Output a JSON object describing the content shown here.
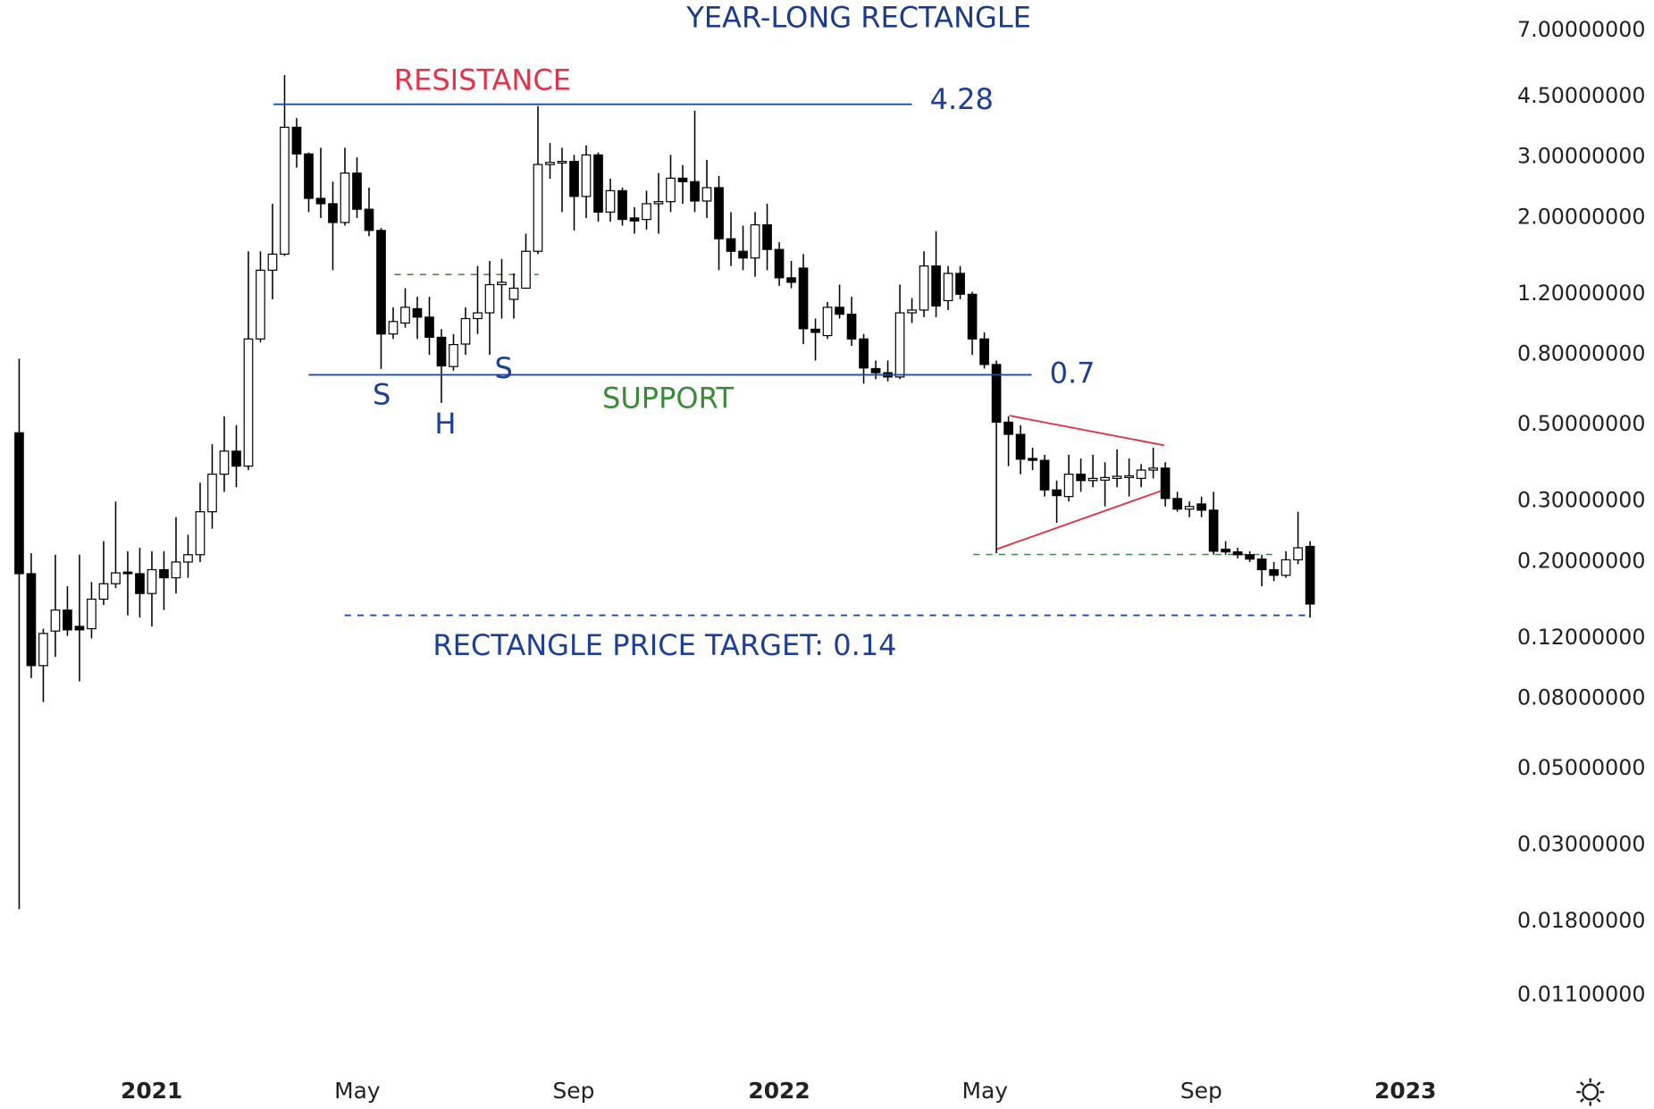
{
  "chart_data": {
    "type": "candlestick",
    "title": "YEAR-LONG RECTANGLE",
    "log_scale": true,
    "up_color": "#ffffff",
    "down_color": "#000000",
    "open": [
      0.475,
      0.185,
      0.1,
      0.126,
      0.145,
      0.13,
      0.128,
      0.156,
      0.173,
      0.187,
      0.185,
      0.162,
      0.19,
      0.18,
      0.2,
      0.21,
      0.28,
      0.36,
      0.42,
      0.38,
      0.89,
      1.41,
      1.57,
      3.67,
      3.07,
      2.28,
      2.2,
      1.94,
      2.7,
      2.12,
      1.84,
      0.92,
      0.99,
      1.09,
      1.03,
      0.9,
      0.74,
      0.86,
      1.02,
      1.06,
      1.28,
      1.16,
      1.25,
      1.6,
      2.86,
      2.9,
      2.92,
      2.31,
      3.05,
      2.08,
      2.4,
      2.0,
      1.98,
      2.2,
      2.23,
      2.61,
      2.55,
      2.24,
      2.45,
      1.74,
      1.6,
      1.53,
      1.91,
      1.62,
      1.34,
      1.43,
      0.95,
      0.91,
      1.1,
      1.05,
      0.89,
      0.73,
      0.71,
      0.69,
      1.06,
      1.08,
      1.45,
      1.15,
      1.38,
      1.2,
      0.89,
      0.75,
      0.51,
      0.47,
      0.4,
      0.395,
      0.324,
      0.31,
      0.36,
      0.345,
      0.346,
      0.35,
      0.352,
      0.35,
      0.37,
      0.375,
      0.306,
      0.285,
      0.295,
      0.283,
      0.218,
      0.214,
      0.21,
      0.204,
      0.19,
      0.183,
      0.203,
      0.222
    ],
    "high": [
      0.78,
      0.212,
      0.128,
      0.21,
      0.17,
      0.21,
      0.175,
      0.23,
      0.3,
      0.215,
      0.22,
      0.215,
      0.215,
      0.27,
      0.24,
      0.34,
      0.44,
      0.53,
      0.5,
      1.6,
      1.6,
      2.2,
      5.2,
      3.9,
      3.1,
      3.2,
      2.55,
      3.2,
      3.0,
      2.45,
      1.87,
      1.1,
      1.25,
      1.18,
      1.18,
      0.95,
      0.92,
      1.1,
      1.45,
      1.5,
      1.52,
      1.38,
      1.8,
      4.23,
      3.3,
      3.2,
      3.05,
      3.25,
      3.1,
      2.6,
      2.45,
      2.15,
      2.4,
      2.7,
      3.05,
      2.85,
      4.1,
      2.95,
      2.65,
      2.08,
      1.9,
      2.08,
      2.2,
      1.7,
      1.5,
      1.57,
      1.02,
      1.14,
      1.28,
      1.18,
      0.92,
      0.77,
      0.77,
      1.28,
      1.17,
      1.6,
      1.83,
      1.45,
      1.45,
      1.22,
      0.93,
      0.77,
      0.53,
      0.5,
      0.43,
      0.41,
      0.345,
      0.41,
      0.4,
      0.41,
      0.39,
      0.425,
      0.4,
      0.385,
      0.43,
      0.39,
      0.32,
      0.3,
      0.31,
      0.32,
      0.23,
      0.22,
      0.215,
      0.21,
      0.2,
      0.215,
      0.28,
      0.23
    ],
    "low": [
      0.0196,
      0.092,
      0.0784,
      0.106,
      0.122,
      0.09,
      0.12,
      0.15,
      0.168,
      0.14,
      0.138,
      0.13,
      0.145,
      0.162,
      0.18,
      0.2,
      0.25,
      0.32,
      0.33,
      0.37,
      0.87,
      1.16,
      1.55,
      2.8,
      2.08,
      2.0,
      1.41,
      1.9,
      2.0,
      1.77,
      0.728,
      0.89,
      0.96,
      0.89,
      0.8,
      0.58,
      0.72,
      0.8,
      0.92,
      0.8,
      1.02,
      1.02,
      1.25,
      1.57,
      2.6,
      2.08,
      1.84,
      2.0,
      1.95,
      1.95,
      1.9,
      1.8,
      1.85,
      1.8,
      2.08,
      2.2,
      2.08,
      2.0,
      1.41,
      1.45,
      1.41,
      1.35,
      1.41,
      1.27,
      1.25,
      0.86,
      0.77,
      0.89,
      1.02,
      0.85,
      0.66,
      0.68,
      0.67,
      0.68,
      0.99,
      1.03,
      1.03,
      1.08,
      1.16,
      0.8,
      0.73,
      0.212,
      0.38,
      0.36,
      0.37,
      0.31,
      0.26,
      0.3,
      0.32,
      0.33,
      0.29,
      0.33,
      0.31,
      0.33,
      0.35,
      0.29,
      0.28,
      0.27,
      0.27,
      0.21,
      0.21,
      0.205,
      0.2,
      0.17,
      0.176,
      0.18,
      0.197,
      0.138
    ],
    "close": [
      0.185,
      0.1,
      0.124,
      0.145,
      0.127,
      0.127,
      0.156,
      0.173,
      0.186,
      0.185,
      0.162,
      0.19,
      0.18,
      0.2,
      0.21,
      0.28,
      0.36,
      0.42,
      0.38,
      0.89,
      1.41,
      1.57,
      3.67,
      3.07,
      2.28,
      2.2,
      1.94,
      2.7,
      2.12,
      1.84,
      0.92,
      1.0,
      1.1,
      1.03,
      0.9,
      0.743,
      0.857,
      1.02,
      1.06,
      1.28,
      1.3,
      1.25,
      1.6,
      2.86,
      2.9,
      2.92,
      2.31,
      3.05,
      2.08,
      2.4,
      1.98,
      1.96,
      2.2,
      2.23,
      2.61,
      2.55,
      2.24,
      2.45,
      1.74,
      1.6,
      1.53,
      1.91,
      1.62,
      1.34,
      1.3,
      0.953,
      0.93,
      1.1,
      1.05,
      0.89,
      0.733,
      0.71,
      0.69,
      1.06,
      1.08,
      1.45,
      1.11,
      1.38,
      1.2,
      0.89,
      0.75,
      0.51,
      0.47,
      0.398,
      0.395,
      0.324,
      0.312,
      0.36,
      0.345,
      0.35,
      0.352,
      0.355,
      0.356,
      0.37,
      0.375,
      0.306,
      0.285,
      0.29,
      0.283,
      0.215,
      0.214,
      0.21,
      0.204,
      0.19,
      0.183,
      0.203,
      0.22,
      0.151
    ],
    "ylim": [
      0.00713,
      8.6
    ],
    "yticks": [
      {
        "value": 7,
        "label": "7.00000000"
      },
      {
        "value": 4.5,
        "label": "4.50000000"
      },
      {
        "value": 3,
        "label": "3.00000000"
      },
      {
        "value": 2,
        "label": "2.00000000"
      },
      {
        "value": 1.2,
        "label": "1.20000000"
      },
      {
        "value": 0.8,
        "label": "0.80000000"
      },
      {
        "value": 0.5,
        "label": "0.50000000"
      },
      {
        "value": 0.3,
        "label": "0.30000000"
      },
      {
        "value": 0.2,
        "label": "0.20000000"
      },
      {
        "value": 0.12,
        "label": "0.12000000"
      },
      {
        "value": 0.08,
        "label": "0.08000000"
      },
      {
        "value": 0.05,
        "label": "0.05000000"
      },
      {
        "value": 0.03,
        "label": "0.03000000"
      },
      {
        "value": 0.018,
        "label": "0.01800000"
      },
      {
        "value": 0.011,
        "label": "0.01100000"
      }
    ],
    "xticks": [
      {
        "value": 10.98,
        "label": "2021"
      },
      {
        "value": 28.03,
        "label": "May"
      },
      {
        "value": 45.96,
        "label": "Sep"
      },
      {
        "value": 63.0,
        "label": "2022"
      },
      {
        "value": 80.05,
        "label": "May"
      },
      {
        "value": 97.98,
        "label": "Sep"
      },
      {
        "value": 114.9,
        "label": "2023"
      }
    ],
    "levels": [
      {
        "value": 4.28
      },
      {
        "value": 0.7
      },
      {
        "value": 0.14,
        "label": "RECTANGLE PRICE TARGET: 0.14"
      }
    ],
    "annotations": [
      "RESISTANCE",
      "SUPPORT",
      "S",
      "H",
      "S"
    ]
  }
}
